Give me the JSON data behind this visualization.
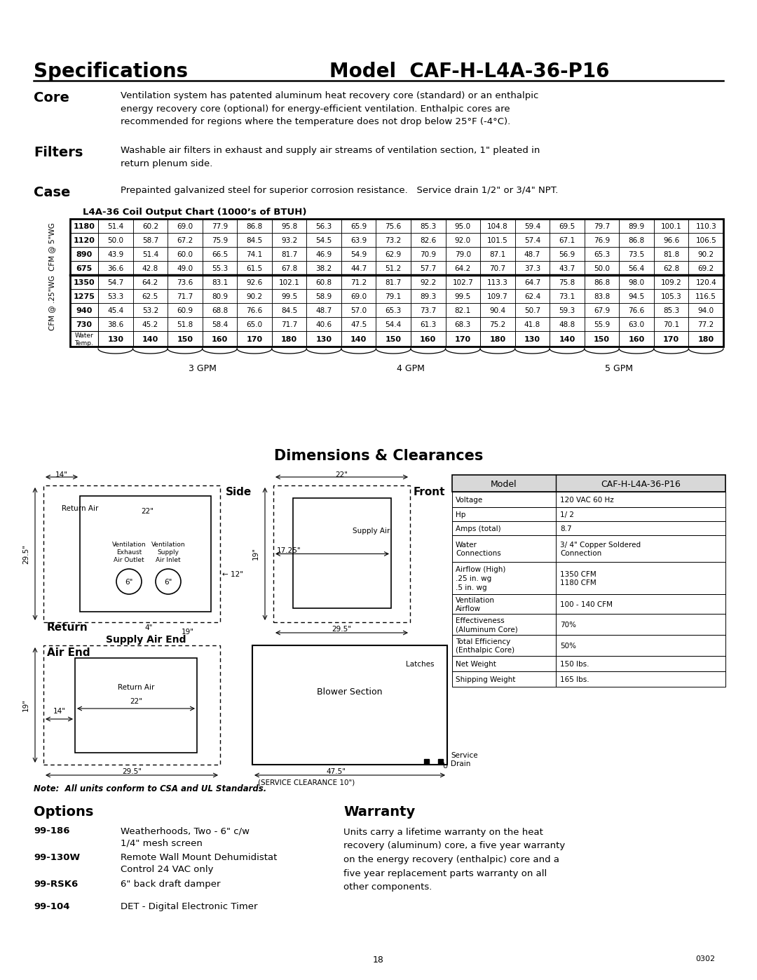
{
  "bg_color": "#ffffff",
  "title_left": "Specifications",
  "title_right": "Model  CAF-H-L4A-36-P16",
  "core_label": "Core",
  "core_text": "Ventilation system has patented aluminum heat recovery core (standard) or an enthalpic\nenergy recovery core (optional) for energy-efficient ventilation. Enthalpic cores are\nrecommended for regions where the temperature does not drop below 25°F (-4°C).",
  "filters_label": "Filters",
  "filters_text": "Washable air filters in exhaust and supply air streams of ventilation section, 1\" pleated in\nreturn plenum side.",
  "case_label": "Case",
  "case_text": "Prepainted galvanized steel for superior corrosion resistance.   Service drain 1/2\" or 3/4\" NPT.",
  "table_title": "L4A-36 Coil Output Chart (1000’s of BTUH)",
  "cfm_5wg_label": "CFM @ 5\"WG",
  "cfm_25wg_label": "CFM @ .25\"WG",
  "cfm_5wg_rows": [
    [
      "1180",
      51.4,
      60.2,
      69.0,
      77.9,
      86.8,
      95.8,
      56.3,
      65.9,
      75.6,
      85.3,
      95.0,
      104.8,
      59.4,
      69.5,
      79.7,
      89.9,
      100.1,
      110.3
    ],
    [
      "1120",
      50.0,
      58.7,
      67.2,
      75.9,
      84.5,
      93.2,
      54.5,
      63.9,
      73.2,
      82.6,
      92.0,
      101.5,
      57.4,
      67.1,
      76.9,
      86.8,
      96.6,
      106.5
    ],
    [
      "890",
      43.9,
      51.4,
      60.0,
      66.5,
      74.1,
      81.7,
      46.9,
      54.9,
      62.9,
      70.9,
      79.0,
      87.1,
      48.7,
      56.9,
      65.3,
      73.5,
      81.8,
      90.2
    ],
    [
      "675",
      36.6,
      42.8,
      49.0,
      55.3,
      61.5,
      67.8,
      38.2,
      44.7,
      51.2,
      57.7,
      64.2,
      70.7,
      37.3,
      43.7,
      50.0,
      56.4,
      62.8,
      69.2
    ]
  ],
  "cfm_25wg_rows": [
    [
      "1350",
      54.7,
      64.2,
      73.6,
      83.1,
      92.6,
      102.1,
      60.8,
      71.2,
      81.7,
      92.2,
      102.7,
      113.3,
      64.7,
      75.8,
      86.8,
      98.0,
      109.2,
      120.4
    ],
    [
      "1275",
      53.3,
      62.5,
      71.7,
      80.9,
      90.2,
      99.5,
      58.9,
      69.0,
      79.1,
      89.3,
      99.5,
      109.7,
      62.4,
      73.1,
      83.8,
      94.5,
      105.3,
      116.5
    ],
    [
      "940",
      45.4,
      53.2,
      60.9,
      68.8,
      76.6,
      84.5,
      48.7,
      57.0,
      65.3,
      73.7,
      82.1,
      90.4,
      50.7,
      59.3,
      67.9,
      76.6,
      85.3,
      94.0
    ],
    [
      "730",
      38.6,
      45.2,
      51.8,
      58.4,
      65.0,
      71.7,
      40.6,
      47.5,
      54.4,
      61.3,
      68.3,
      75.2,
      41.8,
      48.8,
      55.9,
      63.0,
      70.1,
      77.2
    ]
  ],
  "water_temps": [
    130,
    140,
    150,
    160,
    170,
    180,
    130,
    140,
    150,
    160,
    170,
    180,
    130,
    140,
    150,
    160,
    170,
    180
  ],
  "gpm_labels": [
    "3 GPM",
    "4 GPM",
    "5 GPM"
  ],
  "dim_title": "Dimensions & Clearances",
  "specs_model_label": "Model",
  "specs_model_value": "CAF-H-L4A-36-P16",
  "specs_rows": [
    [
      "Voltage",
      "120 VAC 60 Hz"
    ],
    [
      "Hp",
      "1/ 2"
    ],
    [
      "Amps (total)",
      "8.7"
    ],
    [
      "Water\nConnections",
      "3/ 4\" Copper Soldered\nConnection"
    ],
    [
      "Airflow (High)\n.25 in. wg\n.5 in. wg",
      "1350 CFM\n1180 CFM"
    ],
    [
      "Ventilation\nAirflow",
      "100 - 140 CFM"
    ],
    [
      "Effectiveness\n(Aluminum Core)",
      "70%"
    ],
    [
      "Total Efficiency\n(Enthalpic Core)",
      "50%"
    ],
    [
      "Net Weight",
      "150 lbs."
    ],
    [
      "Shipping Weight",
      "165 lbs."
    ]
  ],
  "options_title": "Options",
  "options": [
    [
      "99-186",
      "Weatherhoods, Two - 6\" c/w\n1/4\" mesh screen"
    ],
    [
      "99-130W",
      "Remote Wall Mount Dehumidistat\nControl 24 VAC only"
    ],
    [
      "99-RSK6",
      "6\" back draft damper"
    ],
    [
      "99-104",
      "DET - Digital Electronic Timer"
    ]
  ],
  "warranty_title": "Warranty",
  "warranty_text": "Units carry a lifetime warranty on the heat\nrecovery (aluminum) core, a five year warranty\non the energy recovery (enthalpic) core and a\nfive year replacement parts warranty on all\nother components.",
  "note_text": "Note:  All units conform to CSA and UL Standards.",
  "page_number": "18",
  "code_label": "0302"
}
